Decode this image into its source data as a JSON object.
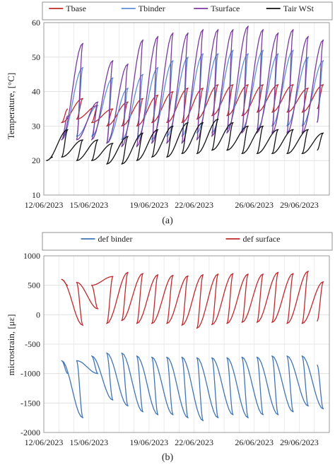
{
  "chart_data": [
    {
      "type": "line",
      "panel_label": "(a)",
      "ylabel": "Temperature, [°C]",
      "ylim": [
        10,
        60
      ],
      "yticks": [
        10,
        20,
        30,
        40,
        50,
        60
      ],
      "xlim": [
        "2023-06-12",
        "2023-07-01"
      ],
      "xticks": [
        "12/06/2023",
        "15/06/2023",
        "19/06/2023",
        "22/06/2023",
        "26/06/2023",
        "29/06/2023"
      ],
      "grid": true,
      "legend": "top",
      "series": [
        {
          "name": "Tbase",
          "color": "#c0282c",
          "x": [
            "2023-06-13",
            "2023-06-13",
            "2023-06-14",
            "2023-06-14",
            "2023-06-15",
            "2023-06-15",
            "2023-06-16",
            "2023-06-16",
            "2023-06-17",
            "2023-06-17",
            "2023-06-18",
            "2023-06-18",
            "2023-06-19",
            "2023-06-19",
            "2023-06-20",
            "2023-06-20",
            "2023-06-21",
            "2023-06-21",
            "2023-06-22",
            "2023-06-22",
            "2023-06-23",
            "2023-06-23",
            "2023-06-24",
            "2023-06-24",
            "2023-06-25",
            "2023-06-25",
            "2023-06-26",
            "2023-06-26",
            "2023-06-27",
            "2023-06-27",
            "2023-06-28",
            "2023-06-28",
            "2023-06-29",
            "2023-06-29",
            "2023-06-30",
            "2023-06-30"
          ],
          "y": [
            35,
            31,
            38,
            32,
            36,
            31,
            35,
            30,
            37,
            30,
            38,
            30,
            39,
            31,
            40,
            31,
            41,
            31,
            41,
            32,
            42,
            33,
            42,
            33,
            42,
            33,
            42,
            34,
            42,
            34,
            42,
            34,
            41,
            34,
            42,
            35
          ]
        },
        {
          "name": "Tbinder",
          "color": "#5b8fd6",
          "x": [
            "2023-06-13",
            "2023-06-13",
            "2023-06-14",
            "2023-06-14",
            "2023-06-15",
            "2023-06-15",
            "2023-06-16",
            "2023-06-16",
            "2023-06-17",
            "2023-06-17",
            "2023-06-18",
            "2023-06-18",
            "2023-06-19",
            "2023-06-19",
            "2023-06-20",
            "2023-06-20",
            "2023-06-21",
            "2023-06-21",
            "2023-06-22",
            "2023-06-22",
            "2023-06-23",
            "2023-06-23",
            "2023-06-24",
            "2023-06-24",
            "2023-06-25",
            "2023-06-25",
            "2023-06-26",
            "2023-06-26",
            "2023-06-27",
            "2023-06-27",
            "2023-06-28",
            "2023-06-28",
            "2023-06-29",
            "2023-06-29",
            "2023-06-30",
            "2023-06-30"
          ],
          "y": [
            30,
            26,
            47,
            27,
            36,
            27,
            44,
            25,
            41,
            26,
            45,
            26,
            47,
            26,
            49,
            27,
            50,
            27,
            51,
            28,
            51,
            28,
            52,
            29,
            51,
            29,
            52,
            29,
            51,
            30,
            52,
            30,
            50,
            30,
            49,
            31
          ]
        },
        {
          "name": "Tsurface",
          "color": "#7a3a9e",
          "x": [
            "2023-06-13",
            "2023-06-13",
            "2023-06-14",
            "2023-06-14",
            "2023-06-15",
            "2023-06-15",
            "2023-06-16",
            "2023-06-16",
            "2023-06-17",
            "2023-06-17",
            "2023-06-18",
            "2023-06-18",
            "2023-06-19",
            "2023-06-19",
            "2023-06-20",
            "2023-06-20",
            "2023-06-21",
            "2023-06-21",
            "2023-06-22",
            "2023-06-22",
            "2023-06-23",
            "2023-06-23",
            "2023-06-24",
            "2023-06-24",
            "2023-06-25",
            "2023-06-25",
            "2023-06-26",
            "2023-06-26",
            "2023-06-27",
            "2023-06-27",
            "2023-06-28",
            "2023-06-28",
            "2023-06-29",
            "2023-06-29",
            "2023-06-30",
            "2023-06-30"
          ],
          "y": [
            33,
            26,
            54,
            26,
            37,
            26,
            49,
            25,
            48,
            24,
            55,
            24,
            56,
            25,
            57,
            25,
            57,
            25,
            58,
            26,
            58,
            27,
            58,
            28,
            59,
            28,
            58,
            28,
            57,
            28,
            58,
            28,
            56,
            28,
            55,
            31
          ]
        },
        {
          "name": "Tair WSt",
          "color": "#111111",
          "x": [
            "2023-06-12",
            "2023-06-12",
            "2023-06-13",
            "2023-06-13",
            "2023-06-14",
            "2023-06-14",
            "2023-06-15",
            "2023-06-15",
            "2023-06-16",
            "2023-06-16",
            "2023-06-17",
            "2023-06-17",
            "2023-06-18",
            "2023-06-18",
            "2023-06-19",
            "2023-06-19",
            "2023-06-20",
            "2023-06-20",
            "2023-06-21",
            "2023-06-21",
            "2023-06-22",
            "2023-06-22",
            "2023-06-23",
            "2023-06-23",
            "2023-06-24",
            "2023-06-24",
            "2023-06-25",
            "2023-06-25",
            "2023-06-26",
            "2023-06-26",
            "2023-06-27",
            "2023-06-27",
            "2023-06-28",
            "2023-06-28",
            "2023-06-29",
            "2023-06-29",
            "2023-06-30",
            "2023-06-30"
          ],
          "y": [
            21,
            20,
            29,
            21,
            26,
            20,
            26,
            20,
            25,
            19,
            27,
            19,
            28,
            20,
            29,
            21,
            30,
            21,
            31,
            22,
            31,
            22,
            32,
            23,
            31,
            23,
            30,
            22,
            30,
            22,
            29,
            22,
            29,
            22,
            29,
            22,
            28,
            23
          ]
        }
      ]
    },
    {
      "type": "line",
      "panel_label": "(b)",
      "ylabel": "microstrain, [με]",
      "ylim": [
        -2000,
        1000
      ],
      "yticks": [
        -2000,
        -1500,
        -1000,
        -500,
        0,
        500,
        1000
      ],
      "xlim": [
        "2023-06-12",
        "2023-07-01"
      ],
      "xticks": [
        "12/06/2023",
        "15/06/2023",
        "19/06/2023",
        "22/06/2023",
        "26/06/2023",
        "29/06/2023"
      ],
      "grid": true,
      "legend": "top",
      "series": [
        {
          "name": "def binder",
          "color": "#3f74b5",
          "x": [
            "2023-06-13",
            "2023-06-13",
            "2023-06-14",
            "2023-06-14",
            "2023-06-15",
            "2023-06-15",
            "2023-06-16",
            "2023-06-16",
            "2023-06-17",
            "2023-06-17",
            "2023-06-18",
            "2023-06-18",
            "2023-06-19",
            "2023-06-19",
            "2023-06-20",
            "2023-06-20",
            "2023-06-21",
            "2023-06-21",
            "2023-06-22",
            "2023-06-22",
            "2023-06-23",
            "2023-06-23",
            "2023-06-24",
            "2023-06-24",
            "2023-06-25",
            "2023-06-25",
            "2023-06-26",
            "2023-06-26",
            "2023-06-27",
            "2023-06-27",
            "2023-06-28",
            "2023-06-28",
            "2023-06-29",
            "2023-06-29",
            "2023-06-30",
            "2023-06-30"
          ],
          "y": [
            -1000,
            -780,
            -1750,
            -780,
            -1000,
            -700,
            -1450,
            -650,
            -1550,
            -650,
            -1650,
            -700,
            -1700,
            -720,
            -1700,
            -720,
            -1750,
            -720,
            -1800,
            -730,
            -1750,
            -730,
            -1700,
            -730,
            -1750,
            -720,
            -1700,
            -720,
            -1700,
            -700,
            -1650,
            -700,
            -1550,
            -700,
            -1600,
            -850
          ]
        },
        {
          "name": "def surface",
          "color": "#c0282c",
          "x": [
            "2023-06-13",
            "2023-06-13",
            "2023-06-14",
            "2023-06-14",
            "2023-06-15",
            "2023-06-15",
            "2023-06-16",
            "2023-06-16",
            "2023-06-17",
            "2023-06-17",
            "2023-06-18",
            "2023-06-18",
            "2023-06-19",
            "2023-06-19",
            "2023-06-20",
            "2023-06-20",
            "2023-06-21",
            "2023-06-21",
            "2023-06-22",
            "2023-06-22",
            "2023-06-23",
            "2023-06-23",
            "2023-06-24",
            "2023-06-24",
            "2023-06-25",
            "2023-06-25",
            "2023-06-26",
            "2023-06-26",
            "2023-06-27",
            "2023-06-27",
            "2023-06-28",
            "2023-06-28",
            "2023-06-29",
            "2023-06-29",
            "2023-06-30",
            "2023-06-30"
          ],
          "y": [
            500,
            600,
            -180,
            550,
            100,
            500,
            650,
            -150,
            720,
            -100,
            700,
            -150,
            680,
            -150,
            670,
            -150,
            660,
            -180,
            680,
            -230,
            690,
            -170,
            700,
            -150,
            690,
            -130,
            690,
            -130,
            720,
            -130,
            700,
            -150,
            740,
            -150,
            560,
            -110
          ]
        }
      ]
    }
  ]
}
